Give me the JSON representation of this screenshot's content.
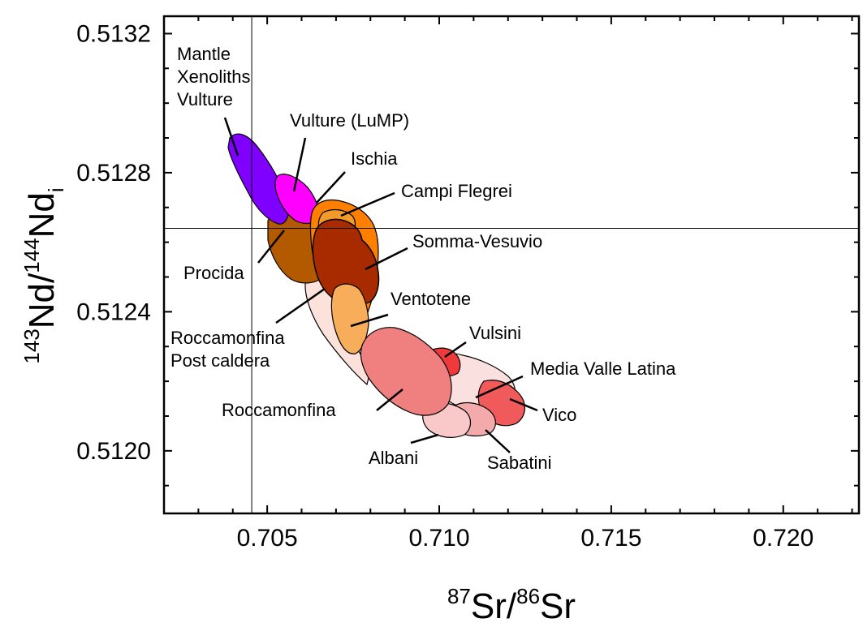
{
  "chart_data": {
    "type": "scatter",
    "title": "",
    "xlabel": {
      "sup1": "87",
      "base1": "Sr/",
      "sup2": "86",
      "base2": "Sr"
    },
    "ylabel": {
      "sup1": "143",
      "base1": "Nd/",
      "sup2": "144",
      "base2": "Nd",
      "sub": "i"
    },
    "xlim": [
      0.702,
      0.7222
    ],
    "ylim": [
      0.51182,
      0.51325
    ],
    "x_ticks": [
      0.705,
      0.71,
      0.715,
      0.72
    ],
    "x_tick_labels": [
      "0.705",
      "0.710",
      "0.715",
      "0.720"
    ],
    "y_ticks": [
      0.512,
      0.5124,
      0.5128,
      0.5132
    ],
    "y_tick_labels": [
      "0.5120",
      "0.5124",
      "0.5128",
      "0.5132"
    ],
    "reference_lines": {
      "x": 0.70455,
      "y": 0.51264
    },
    "colors": {
      "mantle": "#8000ff",
      "vulture": "#ff00ff",
      "campi": "#ff7f00",
      "ischia": "#f39a2a",
      "procida": "#b35a00",
      "somma": "#a82b00",
      "ventotene": "#f7ad5a",
      "roccaPost": "#fde2dc",
      "rocca": "#f08080",
      "vulsini": "#ee3a3a",
      "mvl": "#fbe0e0",
      "vico": "#f05a5a",
      "albani": "#f9c8c8",
      "sabatini": "#f4aaaa"
    },
    "fields": [
      {
        "name": "Somma-Vesuvio",
        "color": "somma",
        "points": [
          [
            0.7065,
            0.51263
          ],
          [
            0.707,
            0.51265
          ],
          [
            0.7074,
            0.51262
          ],
          [
            0.7079,
            0.51254
          ],
          [
            0.7081,
            0.51246
          ],
          [
            0.708,
            0.5124
          ],
          [
            0.7075,
            0.51239
          ],
          [
            0.7069,
            0.51243
          ],
          [
            0.7065,
            0.51252
          ]
        ]
      }
    ],
    "labels": [
      {
        "lines": [
          "Mantle",
          "Xenoliths",
          "Vulture"
        ]
      },
      {
        "lines": [
          "Vulture (LuMP)"
        ]
      },
      {
        "lines": [
          "Ischia"
        ]
      },
      {
        "lines": [
          "Campi Flegrei"
        ]
      },
      {
        "lines": [
          "Somma-Vesuvio"
        ]
      },
      {
        "lines": [
          "Procida"
        ]
      },
      {
        "lines": [
          "Ventotene"
        ]
      },
      {
        "lines": [
          "Roccamonfina",
          "Post caldera"
        ]
      },
      {
        "lines": [
          "Vulsini"
        ]
      },
      {
        "lines": [
          "Media Valle Latina"
        ]
      },
      {
        "lines": [
          "Roccamonfina"
        ]
      },
      {
        "lines": [
          "Vico"
        ]
      },
      {
        "lines": [
          "Albani"
        ]
      },
      {
        "lines": [
          "Sabatini"
        ]
      }
    ]
  }
}
